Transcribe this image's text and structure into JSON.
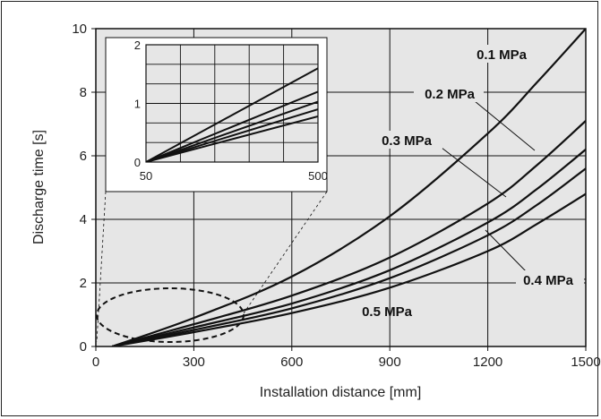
{
  "chart_data": {
    "type": "line",
    "title": "",
    "xlabel": "Installation distance [mm]",
    "ylabel": "Discharge time [s]",
    "xlim": [
      0,
      1500
    ],
    "ylim": [
      0,
      10
    ],
    "x_ticks": [
      "0",
      "300",
      "600",
      "900",
      "1200",
      "1500"
    ],
    "y_ticks": [
      "0",
      "2",
      "4",
      "6",
      "8",
      "10"
    ],
    "grid": true,
    "series": [
      {
        "name": "0.1 MPa",
        "x": [
          50,
          300,
          600,
          900,
          1200,
          1350,
          1500
        ],
        "y": [
          0,
          0.9,
          2.2,
          4.1,
          6.7,
          8.3,
          10
        ]
      },
      {
        "name": "0.2 MPa",
        "x": [
          50,
          300,
          600,
          900,
          1200,
          1350,
          1500
        ],
        "y": [
          0,
          0.7,
          1.6,
          2.8,
          4.5,
          5.7,
          7.1
        ]
      },
      {
        "name": "0.3 MPa",
        "x": [
          50,
          300,
          600,
          900,
          1200,
          1350,
          1500
        ],
        "y": [
          0,
          0.6,
          1.35,
          2.4,
          3.9,
          4.95,
          6.2
        ]
      },
      {
        "name": "0.4 MPa",
        "x": [
          50,
          300,
          600,
          900,
          1200,
          1350,
          1500
        ],
        "y": [
          0,
          0.52,
          1.2,
          2.15,
          3.5,
          4.45,
          5.6
        ]
      },
      {
        "name": "0.5 MPa",
        "x": [
          50,
          300,
          600,
          900,
          1200,
          1350,
          1500
        ],
        "y": [
          0,
          0.45,
          1.05,
          1.85,
          3.0,
          3.85,
          4.8
        ]
      }
    ],
    "inset": {
      "xlim": [
        50,
        500
      ],
      "ylim": [
        0,
        2
      ],
      "x_ticks": [
        "50",
        "500"
      ],
      "y_ticks": [
        "0",
        "1",
        "2"
      ],
      "series": [
        {
          "name": "0.1 MPa",
          "x": [
            50,
            500
          ],
          "y": [
            0,
            1.6
          ]
        },
        {
          "name": "0.2 MPa",
          "x": [
            50,
            500
          ],
          "y": [
            0,
            1.2
          ]
        },
        {
          "name": "0.3 MPa",
          "x": [
            50,
            500
          ],
          "y": [
            0,
            1.03
          ]
        },
        {
          "name": "0.4 MPa",
          "x": [
            50,
            500
          ],
          "y": [
            0,
            0.9
          ]
        },
        {
          "name": "0.5 MPa",
          "x": [
            50,
            500
          ],
          "y": [
            0,
            0.78
          ]
        }
      ]
    }
  }
}
